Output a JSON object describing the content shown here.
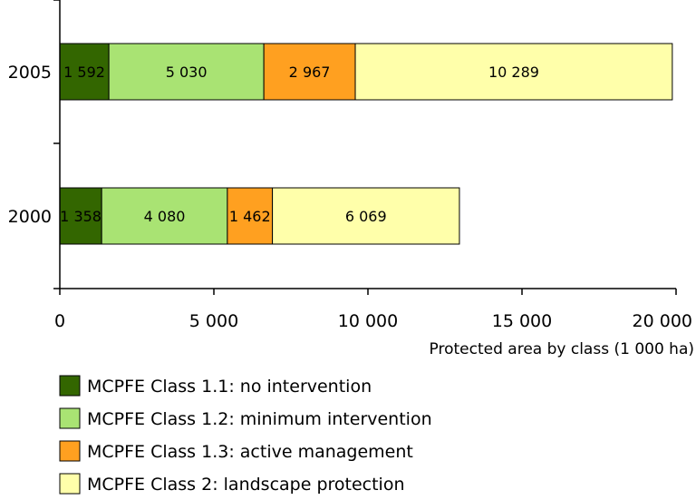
{
  "chart_data": {
    "type": "bar",
    "orientation": "horizontal",
    "stacked": true,
    "categories": [
      "2005",
      "2000"
    ],
    "series": [
      {
        "name": "MCPFE Class 1.1: no intervention",
        "values": [
          1592,
          1358
        ],
        "labels": [
          "1 592",
          "1 358"
        ],
        "color": "#336600"
      },
      {
        "name": "MCPFE Class 1.2: minimum intervention",
        "values": [
          5030,
          4080
        ],
        "labels": [
          "5 030",
          "4 080"
        ],
        "color": "#a9e373"
      },
      {
        "name": "MCPFE Class 1.3: active management",
        "values": [
          2967,
          1462
        ],
        "labels": [
          "2 967",
          "1 462"
        ],
        "color": "#ffa020"
      },
      {
        "name": "MCPFE Class 2: landscape protection",
        "values": [
          10289,
          6069
        ],
        "labels": [
          "10 289",
          "6 069"
        ],
        "color": "#ffffaa"
      }
    ],
    "xlabel": "Protected area by class (1 000 ha)",
    "ylabel": "",
    "xlim": [
      0,
      20000
    ],
    "xticks": [
      0,
      5000,
      10000,
      15000,
      20000
    ],
    "xtick_labels": [
      "0",
      "5 000",
      "10 000",
      "15 000",
      "20 000"
    ],
    "grid": false,
    "legend_position": "bottom"
  }
}
